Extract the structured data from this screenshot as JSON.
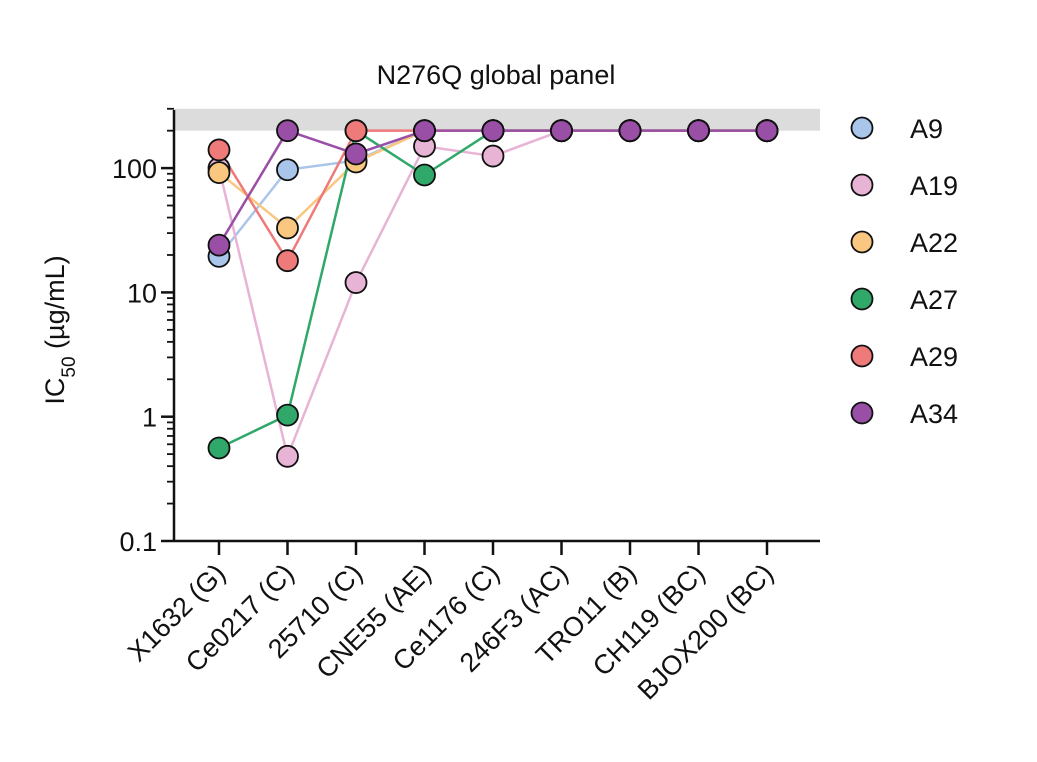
{
  "chart_data": {
    "type": "line",
    "title": "N276Q global panel",
    "ylabel": {
      "main": "IC",
      "sub": "50",
      "rest": " (µg/mL)"
    },
    "yscale": "log",
    "ylim": [
      0.1,
      300
    ],
    "yticks": [
      {
        "value": 0.1,
        "label": "0.1"
      },
      {
        "value": 1,
        "label": "1"
      },
      {
        "value": 10,
        "label": "10"
      },
      {
        "value": 100,
        "label": "100"
      }
    ],
    "shaded_band": {
      "from": 200,
      "to": 300,
      "color": "#dcdcdc"
    },
    "categories": [
      "X1632 (G)",
      "Ce0217 (C)",
      "25710 (C)",
      "CNE55 (AE)",
      "Ce1176 (C)",
      "246F3 (AC)",
      "TRO11 (B)",
      "CH119 (BC)",
      "BJOX200 (BC)"
    ],
    "legend_position": "right",
    "series": [
      {
        "name": "A9",
        "color": "#a9c6ea",
        "values": [
          19.5,
          97,
          115,
          200,
          200,
          200,
          200,
          200,
          200
        ]
      },
      {
        "name": "A19",
        "color": "#e8b4d6",
        "values": [
          100,
          0.48,
          12,
          150,
          125,
          200,
          200,
          200,
          200
        ]
      },
      {
        "name": "A22",
        "color": "#f9c77f",
        "values": [
          92,
          33,
          112,
          200,
          200,
          200,
          200,
          200,
          200
        ]
      },
      {
        "name": "A27",
        "color": "#2fa86a",
        "values": [
          0.56,
          1.03,
          200,
          88,
          200,
          200,
          200,
          200,
          200
        ]
      },
      {
        "name": "A29",
        "color": "#ee7a7a",
        "values": [
          140,
          18,
          200,
          200,
          200,
          200,
          200,
          200,
          200
        ]
      },
      {
        "name": "A34",
        "color": "#9a4fa6",
        "values": [
          24,
          200,
          130,
          200,
          200,
          200,
          200,
          200,
          200
        ]
      }
    ]
  }
}
